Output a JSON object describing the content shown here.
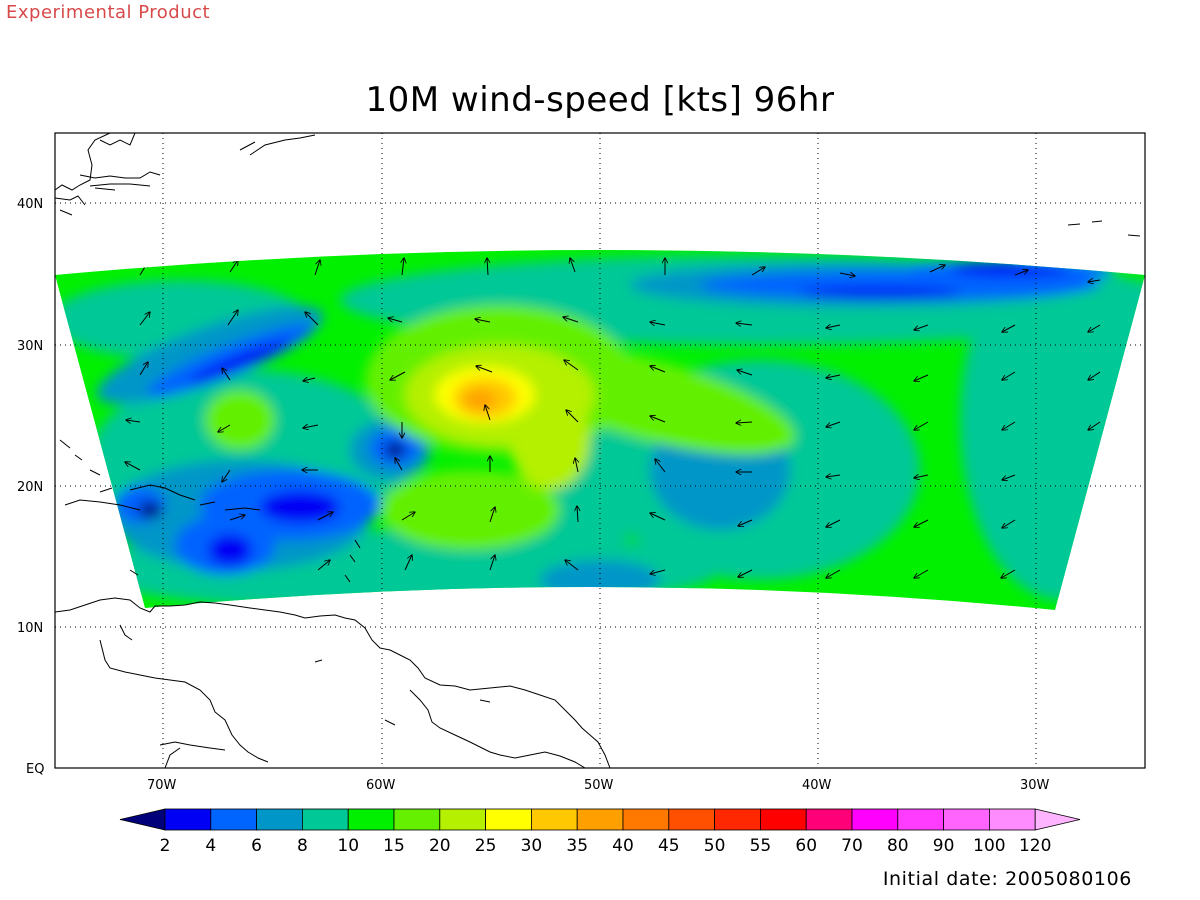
{
  "header": {
    "product_label": "Experimental Product"
  },
  "map": {
    "title": "10M wind-speed [kts] 96hr",
    "initial_date": "Initial date: 2005080106",
    "lon_labels": [
      "70W",
      "60W",
      "50W",
      "40W",
      "30W"
    ],
    "lat_labels": [
      "40N",
      "30N",
      "20N",
      "10N",
      "EQ"
    ],
    "grid": "dotted",
    "features": [
      "wind-speed contours",
      "wind-vector arrows",
      "coastlines"
    ]
  },
  "colorbar": {
    "levels": [
      "2",
      "4",
      "6",
      "8",
      "10",
      "15",
      "20",
      "25",
      "30",
      "35",
      "40",
      "45",
      "50",
      "55",
      "60",
      "70",
      "80",
      "90",
      "100",
      "120"
    ],
    "colors": [
      "#00007a",
      "#0000f5",
      "#0064ff",
      "#0096c8",
      "#00c896",
      "#00f000",
      "#64f000",
      "#b4f000",
      "#ffff00",
      "#ffc800",
      "#ffa000",
      "#ff7800",
      "#ff5000",
      "#ff2800",
      "#ff0000",
      "#ff0078",
      "#ff00ff",
      "#ff3cff",
      "#ff64ff",
      "#ff8cff",
      "#ffb4ff"
    ]
  }
}
